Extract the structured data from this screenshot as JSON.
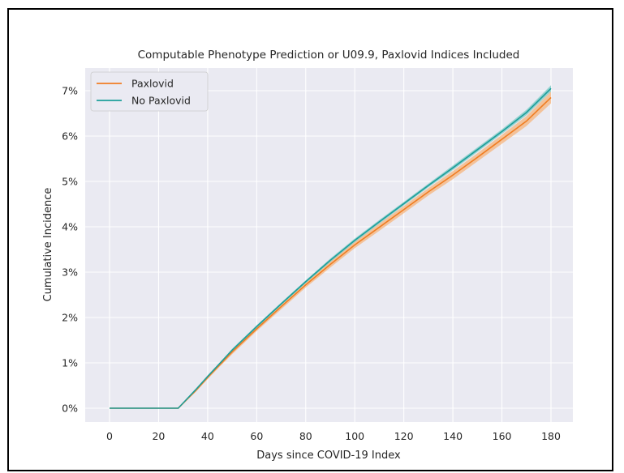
{
  "chart_data": {
    "type": "line",
    "title": "Computable Phenotype Prediction or U09.9, Paxlovid Indices Included",
    "xlabel": "Days since COVID-19 Index",
    "ylabel": "Cumulative Incidence",
    "xlim": [
      0,
      180
    ],
    "ylim": [
      0,
      7.2
    ],
    "x_ticks": [
      0,
      20,
      40,
      60,
      80,
      100,
      120,
      140,
      160,
      180
    ],
    "y_ticks": [
      "0%",
      "1%",
      "2%",
      "3%",
      "4%",
      "5%",
      "6%",
      "7%"
    ],
    "y_tick_values": [
      0,
      1,
      2,
      3,
      4,
      5,
      6,
      7
    ],
    "grid": true,
    "legend_position": "top-left",
    "series": [
      {
        "name": "Paxlovid",
        "color": "#f07d22",
        "band_color": "#f5b47c",
        "x": [
          0,
          28,
          35,
          40,
          45,
          50,
          60,
          70,
          80,
          90,
          100,
          110,
          120,
          130,
          140,
          150,
          160,
          170,
          180
        ],
        "y": [
          0,
          0,
          0.38,
          0.68,
          0.96,
          1.24,
          1.75,
          2.24,
          2.72,
          3.17,
          3.6,
          3.99,
          4.38,
          4.77,
          5.14,
          5.53,
          5.93,
          6.33,
          6.85
        ],
        "ci_half_width": [
          0,
          0,
          0.03,
          0.04,
          0.04,
          0.05,
          0.05,
          0.06,
          0.06,
          0.07,
          0.07,
          0.08,
          0.08,
          0.08,
          0.09,
          0.09,
          0.1,
          0.11,
          0.13
        ]
      },
      {
        "name": "No Paxlovid",
        "color": "#1c9e9a",
        "band_color": "#79c9c5",
        "x": [
          0,
          28,
          35,
          40,
          45,
          50,
          60,
          70,
          80,
          90,
          100,
          110,
          120,
          130,
          140,
          150,
          160,
          170,
          180
        ],
        "y": [
          0,
          0,
          0.4,
          0.7,
          0.99,
          1.28,
          1.8,
          2.3,
          2.79,
          3.26,
          3.7,
          4.11,
          4.51,
          4.91,
          5.3,
          5.7,
          6.1,
          6.52,
          7.05
        ],
        "ci_half_width": [
          0,
          0,
          0.02,
          0.02,
          0.02,
          0.03,
          0.03,
          0.03,
          0.03,
          0.04,
          0.04,
          0.04,
          0.04,
          0.04,
          0.05,
          0.05,
          0.05,
          0.06,
          0.07
        ]
      }
    ]
  }
}
